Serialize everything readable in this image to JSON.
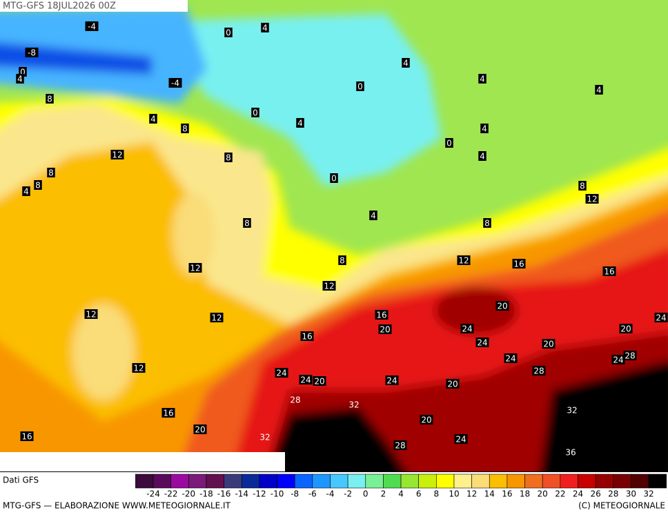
{
  "header": {
    "title": "MTG-GFS 18JUL2026 00Z"
  },
  "map": {
    "contour_labels": [
      -4,
      0,
      4,
      -8,
      0,
      4,
      -4,
      0,
      4,
      4,
      4,
      8,
      0,
      4,
      4,
      8,
      4,
      0,
      12,
      8,
      4,
      8,
      8,
      4,
      0,
      8,
      12,
      4,
      8,
      8,
      12,
      8,
      12,
      16,
      16,
      12,
      12,
      12,
      16,
      20,
      20,
      16,
      24,
      24,
      20,
      24,
      20,
      12,
      24,
      28,
      24,
      24,
      24,
      20,
      24,
      28,
      20,
      28,
      32,
      32,
      16,
      20,
      20,
      32,
      16,
      24,
      28,
      36
    ]
  },
  "legend": {
    "source": "Dati GFS",
    "colors": [
      "#3c0a3c",
      "#5a0a5a",
      "#9a0aa0",
      "#7a1a7a",
      "#62104e",
      "#3a3a7a",
      "#0a2a9a",
      "#0000c8",
      "#0000ff",
      "#0a64ff",
      "#1e96ff",
      "#46c8ff",
      "#78f0f0",
      "#78f096",
      "#50dc50",
      "#96e632",
      "#c8f00a",
      "#ffff00",
      "#fff08c",
      "#fadc78",
      "#fbbe00",
      "#f89600",
      "#f06e1e",
      "#f05028",
      "#f01e1e",
      "#c80000",
      "#960000",
      "#780000",
      "#500000",
      "#000000"
    ],
    "ticks": [
      -24,
      -22,
      -20,
      -18,
      -16,
      -14,
      -12,
      -10,
      -8,
      -6,
      -4,
      -2,
      0,
      2,
      4,
      6,
      8,
      10,
      12,
      14,
      16,
      18,
      20,
      22,
      24,
      26,
      28,
      30,
      32
    ]
  },
  "footer": {
    "left": "MTG-GFS — ELABORAZIONE WWW.METEOGIORNALE.IT",
    "right": "(C) METEOGIORNALE"
  }
}
